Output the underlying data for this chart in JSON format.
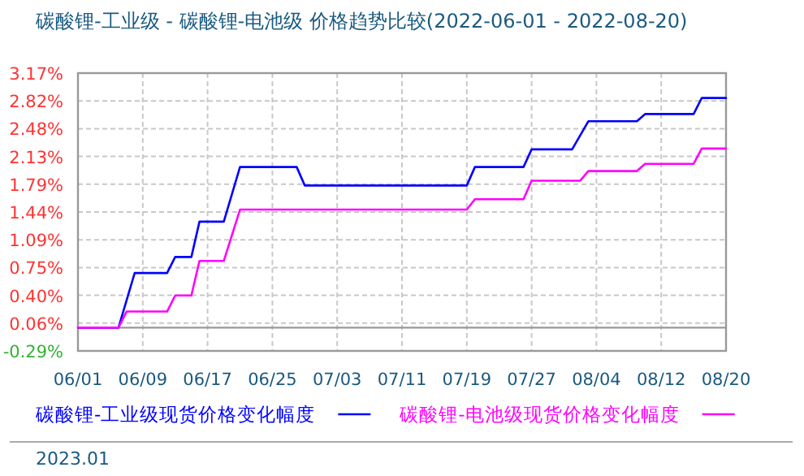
{
  "chart_data": {
    "type": "line",
    "title": "碳酸锂-工业级 - 碳酸锂-电池级 价格趋势比较(2022-06-01 - 2022-08-20)",
    "xlim": [
      "2022-06-01",
      "2022-08-20"
    ],
    "xticks": [
      {
        "value": "2022-06-01",
        "label": "06/01"
      },
      {
        "value": "2022-06-09",
        "label": "06/09"
      },
      {
        "value": "2022-06-17",
        "label": "06/17"
      },
      {
        "value": "2022-06-25",
        "label": "06/25"
      },
      {
        "value": "2022-07-03",
        "label": "07/03"
      },
      {
        "value": "2022-07-11",
        "label": "07/11"
      },
      {
        "value": "2022-07-19",
        "label": "07/19"
      },
      {
        "value": "2022-07-27",
        "label": "07/27"
      },
      {
        "value": "2022-08-04",
        "label": "08/04"
      },
      {
        "value": "2022-08-12",
        "label": "08/12"
      },
      {
        "value": "2022-08-20",
        "label": "08/20"
      }
    ],
    "ylim": [
      -0.29,
      3.17
    ],
    "yticks": [
      {
        "value": -0.29,
        "label": "-0.29%"
      },
      {
        "value": 0.056,
        "label": "0.06%"
      },
      {
        "value": 0.402,
        "label": "0.40%"
      },
      {
        "value": 0.748,
        "label": "0.75%"
      },
      {
        "value": 1.094,
        "label": "1.09%"
      },
      {
        "value": 1.44,
        "label": "1.44%"
      },
      {
        "value": 1.786,
        "label": "1.79%"
      },
      {
        "value": 2.132,
        "label": "2.13%"
      },
      {
        "value": 2.478,
        "label": "2.48%"
      },
      {
        "value": 2.824,
        "label": "2.82%"
      },
      {
        "value": 3.17,
        "label": "3.17%"
      }
    ],
    "grid": true,
    "legend": "bottom",
    "marker": "none",
    "line_style": "solid",
    "ref_lines": [
      {
        "axis": "y",
        "value": 0,
        "color": "#999999"
      }
    ],
    "annotations": [
      "2023.01"
    ],
    "series": [
      {
        "name": "碳酸锂-工业级现货价格变化幅度",
        "color": "#0000ff",
        "x": [
          "2022-06-01",
          "2022-06-06",
          "2022-06-08",
          "2022-06-12",
          "2022-06-13",
          "2022-06-15",
          "2022-06-16",
          "2022-06-19",
          "2022-06-21",
          "2022-06-28",
          "2022-06-29",
          "2022-07-19",
          "2022-07-20",
          "2022-07-26",
          "2022-07-27",
          "2022-08-01",
          "2022-08-03",
          "2022-08-09",
          "2022-08-10",
          "2022-08-16",
          "2022-08-17",
          "2022-08-20"
        ],
        "values": [
          0,
          0,
          0.68,
          0.68,
          0.88,
          0.88,
          1.32,
          1.32,
          2.0,
          2.0,
          1.77,
          1.77,
          2.0,
          2.0,
          2.22,
          2.22,
          2.57,
          2.57,
          2.66,
          2.66,
          2.86,
          2.86
        ]
      },
      {
        "name": "碳酸锂-电池级现货价格变化幅度",
        "color": "#ff00ff",
        "x": [
          "2022-06-01",
          "2022-06-06",
          "2022-06-07",
          "2022-06-12",
          "2022-06-13",
          "2022-06-15",
          "2022-06-16",
          "2022-06-19",
          "2022-06-21",
          "2022-07-19",
          "2022-07-20",
          "2022-07-26",
          "2022-07-27",
          "2022-08-02",
          "2022-08-03",
          "2022-08-09",
          "2022-08-10",
          "2022-08-16",
          "2022-08-17",
          "2022-08-20"
        ],
        "values": [
          0,
          0,
          0.2,
          0.2,
          0.4,
          0.4,
          0.83,
          0.83,
          1.47,
          1.47,
          1.6,
          1.6,
          1.83,
          1.83,
          1.95,
          1.95,
          2.04,
          2.04,
          2.23,
          2.23
        ]
      }
    ]
  }
}
